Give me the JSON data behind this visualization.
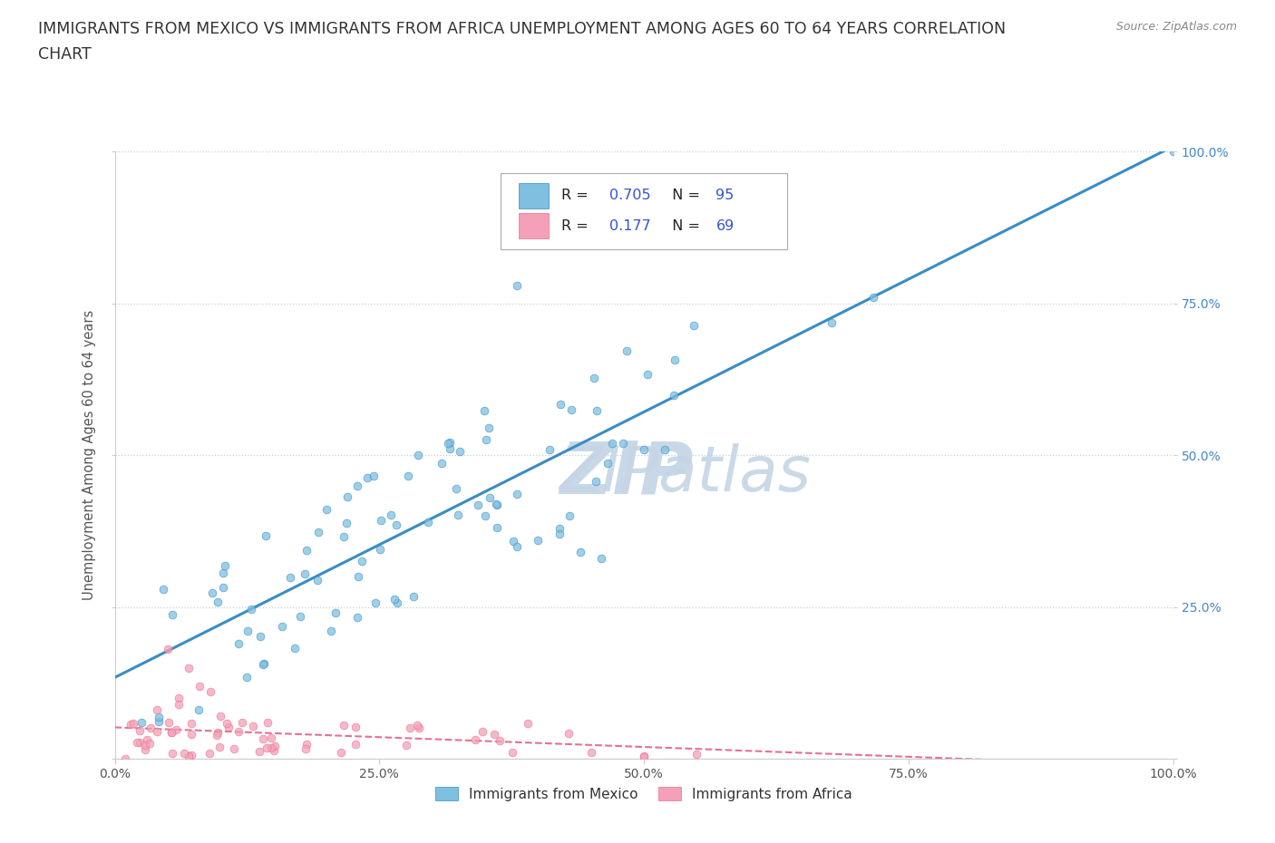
{
  "title_line1": "IMMIGRANTS FROM MEXICO VS IMMIGRANTS FROM AFRICA UNEMPLOYMENT AMONG AGES 60 TO 64 YEARS CORRELATION",
  "title_line2": "CHART",
  "source_text": "Source: ZipAtlas.com",
  "ylabel": "Unemployment Among Ages 60 to 64 years",
  "xlim": [
    0.0,
    1.0
  ],
  "ylim": [
    0.0,
    1.0
  ],
  "mexico_color": "#7fbfdf",
  "africa_color": "#f4a0b8",
  "mexico_line_color": "#3a8cc4",
  "africa_line_color": "#e87090",
  "R_mexico": 0.705,
  "N_mexico": 95,
  "R_africa": 0.177,
  "N_africa": 69,
  "background_color": "#ffffff",
  "grid_color": "#cccccc",
  "tick_color": "#4488cc",
  "title_color": "#333333",
  "source_color": "#888888",
  "label_color": "#555555",
  "watermark_color": "#c8d8e8",
  "legend_R_color": "#3355cc"
}
